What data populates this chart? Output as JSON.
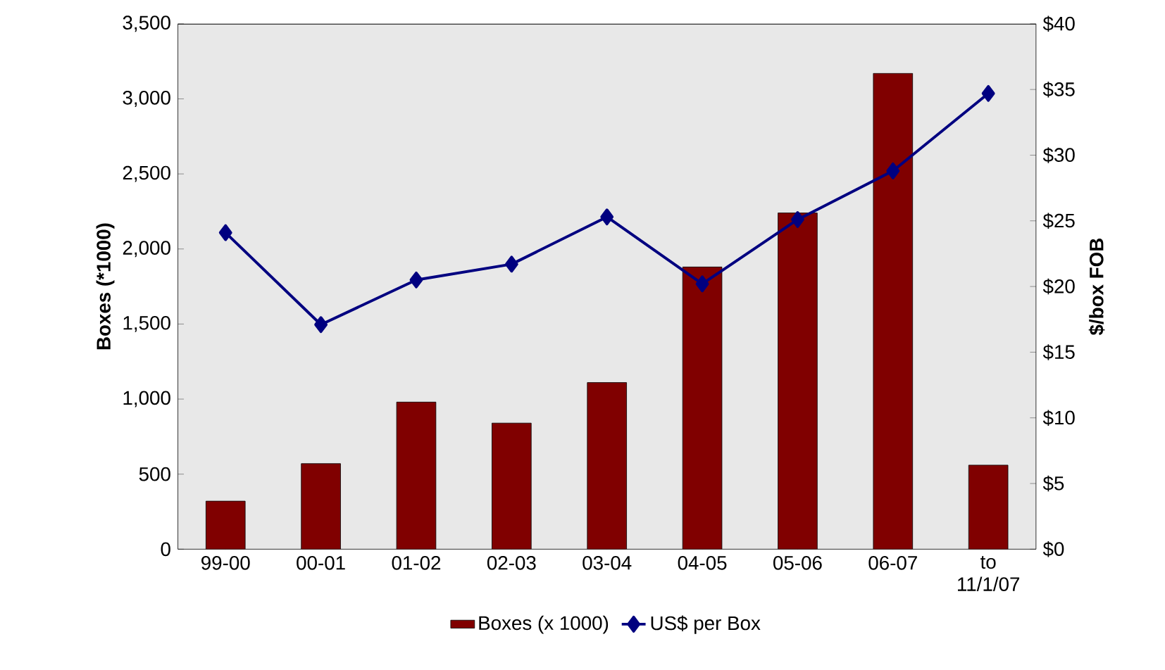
{
  "chart_data": {
    "type": "bar",
    "categories": [
      "99-00",
      "00-01",
      "01-02",
      "02-03",
      "03-04",
      "04-05",
      "05-06",
      "06-07",
      "to 11/1/07"
    ],
    "series": [
      {
        "name": "Boxes (x 1000)",
        "color": "#800000",
        "values": [
          320,
          570,
          980,
          840,
          1110,
          1880,
          2240,
          3170,
          560
        ]
      },
      {
        "name": "US$ per Box",
        "type": "line",
        "axis": "y2",
        "color": "#000080",
        "values": [
          24.1,
          17.1,
          20.5,
          21.7,
          25.3,
          20.2,
          25.1,
          28.8,
          34.7
        ]
      }
    ],
    "ylabel": "Boxes (*1000)",
    "y2label": "$/box FOB",
    "ylim": [
      0,
      3500
    ],
    "yticks": [
      0,
      500,
      {
        "value": 1000,
        "label": "1,000"
      },
      {
        "value": 1500,
        "label": "1,500"
      },
      {
        "value": 2000,
        "label": "2,000"
      },
      {
        "value": 2500,
        "label": "2,500"
      },
      {
        "value": 3000,
        "label": "3,000"
      },
      {
        "value": 3500,
        "label": "3,500"
      }
    ],
    "y2lim": [
      0,
      40
    ],
    "y2ticks": [
      {
        "value": 0,
        "label": "$0"
      },
      {
        "value": 5,
        "label": "$5"
      },
      {
        "value": 10,
        "label": "$10"
      },
      {
        "value": 15,
        "label": "$15"
      },
      {
        "value": 20,
        "label": "$20"
      },
      {
        "value": 25,
        "label": "$25"
      },
      {
        "value": 30,
        "label": "$30"
      },
      {
        "value": 35,
        "label": "$35"
      },
      {
        "value": 40,
        "label": "$40"
      }
    ],
    "legend": "bottom",
    "marker": "diamond",
    "grid": false
  }
}
